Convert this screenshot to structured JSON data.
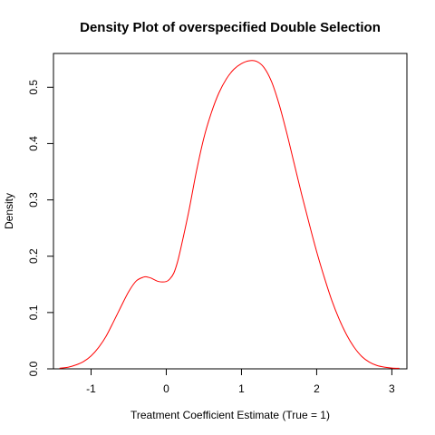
{
  "chart_data": {
    "type": "line",
    "title": "Density Plot of overspecified Double Selection",
    "xlabel": "Treatment Coefficient Estimate (True = 1)",
    "ylabel": "Density",
    "xlim": [
      -1.5,
      3.2
    ],
    "ylim": [
      0,
      0.56
    ],
    "x_ticks": [
      -1,
      0,
      1,
      2,
      3
    ],
    "y_ticks": [
      0.0,
      0.1,
      0.2,
      0.3,
      0.4,
      0.5
    ],
    "x_tick_labels": [
      "-1",
      "0",
      "1",
      "2",
      "3"
    ],
    "y_tick_labels": [
      "0.0",
      "0.1",
      "0.2",
      "0.3",
      "0.4",
      "0.5"
    ],
    "grid": false,
    "line_color": "#ff0000",
    "series": [
      {
        "x": [
          -1.42,
          -1.3,
          -1.2,
          -1.1,
          -1.0,
          -0.9,
          -0.8,
          -0.7,
          -0.6,
          -0.5,
          -0.4,
          -0.3,
          -0.25,
          -0.2,
          -0.1,
          0.0,
          0.05,
          0.1,
          0.15,
          0.2,
          0.3,
          0.4,
          0.5,
          0.6,
          0.7,
          0.8,
          0.9,
          1.0,
          1.1,
          1.2,
          1.3,
          1.4,
          1.5,
          1.6,
          1.7,
          1.8,
          1.9,
          2.0,
          2.1,
          2.2,
          2.3,
          2.4,
          2.5,
          2.6,
          2.7,
          2.8,
          2.9,
          3.0,
          3.1
        ],
        "y": [
          0.001,
          0.003,
          0.007,
          0.013,
          0.023,
          0.038,
          0.058,
          0.084,
          0.111,
          0.137,
          0.156,
          0.163,
          0.163,
          0.161,
          0.155,
          0.155,
          0.16,
          0.17,
          0.19,
          0.218,
          0.28,
          0.35,
          0.41,
          0.455,
          0.49,
          0.515,
          0.532,
          0.542,
          0.547,
          0.546,
          0.535,
          0.51,
          0.47,
          0.42,
          0.365,
          0.31,
          0.258,
          0.208,
          0.163,
          0.122,
          0.088,
          0.06,
          0.038,
          0.022,
          0.012,
          0.006,
          0.003,
          0.0015,
          0.001
        ]
      }
    ]
  }
}
